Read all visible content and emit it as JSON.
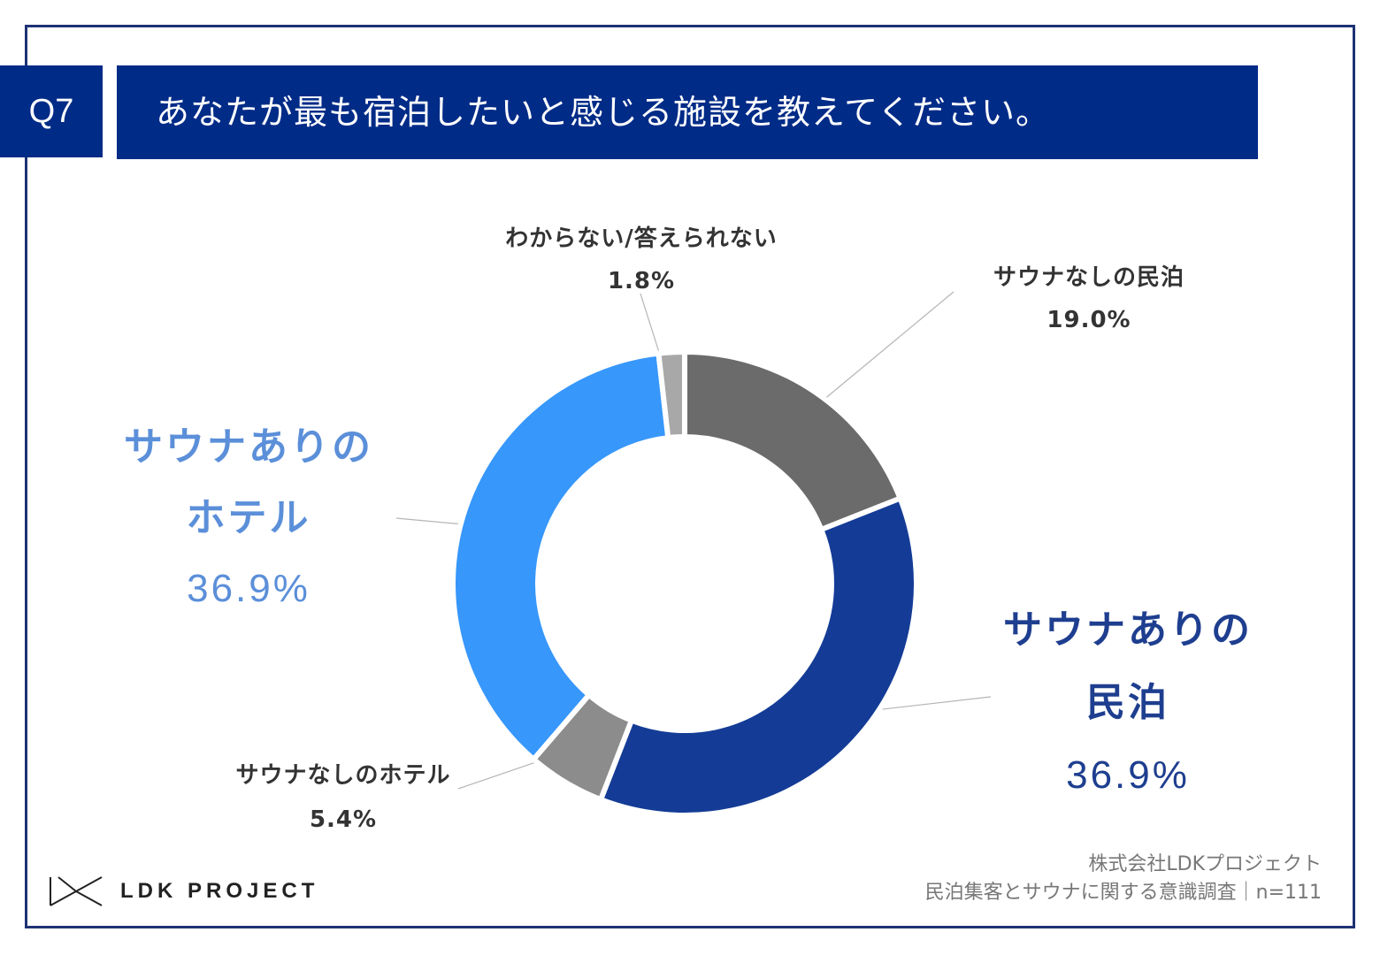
{
  "header": {
    "question_number": "Q7",
    "question_text": "あなたが最も宿泊したいと感じる施設を教えてください。"
  },
  "chart_data": {
    "type": "pie",
    "donut": true,
    "title": "あなたが最も宿泊したいと感じる施設を教えてください。",
    "unit": "%",
    "slices": [
      {
        "label": "サウナなしの民泊",
        "label_lines": [
          "サウナなしの民泊"
        ],
        "value": 19.0,
        "value_label": "19.0%",
        "color": "#6b6b6b"
      },
      {
        "label": "サウナありの民泊",
        "label_lines": [
          "サウナありの",
          "民泊"
        ],
        "value": 36.9,
        "value_label": "36.9%",
        "color": "#143c96"
      },
      {
        "label": "サウナなしのホテル",
        "label_lines": [
          "サウナなしのホテル"
        ],
        "value": 5.4,
        "value_label": "5.4%",
        "color": "#8c8c8c"
      },
      {
        "label": "サウナありのホテル",
        "label_lines": [
          "サウナありの",
          "ホテル"
        ],
        "value": 36.9,
        "value_label": "36.9%",
        "color": "#3797fb"
      },
      {
        "label": "わからない/答えられない",
        "label_lines": [
          "わからない/答えられない"
        ],
        "value": 1.8,
        "value_label": "1.8%",
        "color": "#a8a8a8"
      }
    ]
  },
  "footer": {
    "logo_text": "LDK PROJECT",
    "source_line1": "株式会社LDKプロジェクト",
    "source_line2": "民泊集客とサウナに関する意識調査｜n=111"
  }
}
